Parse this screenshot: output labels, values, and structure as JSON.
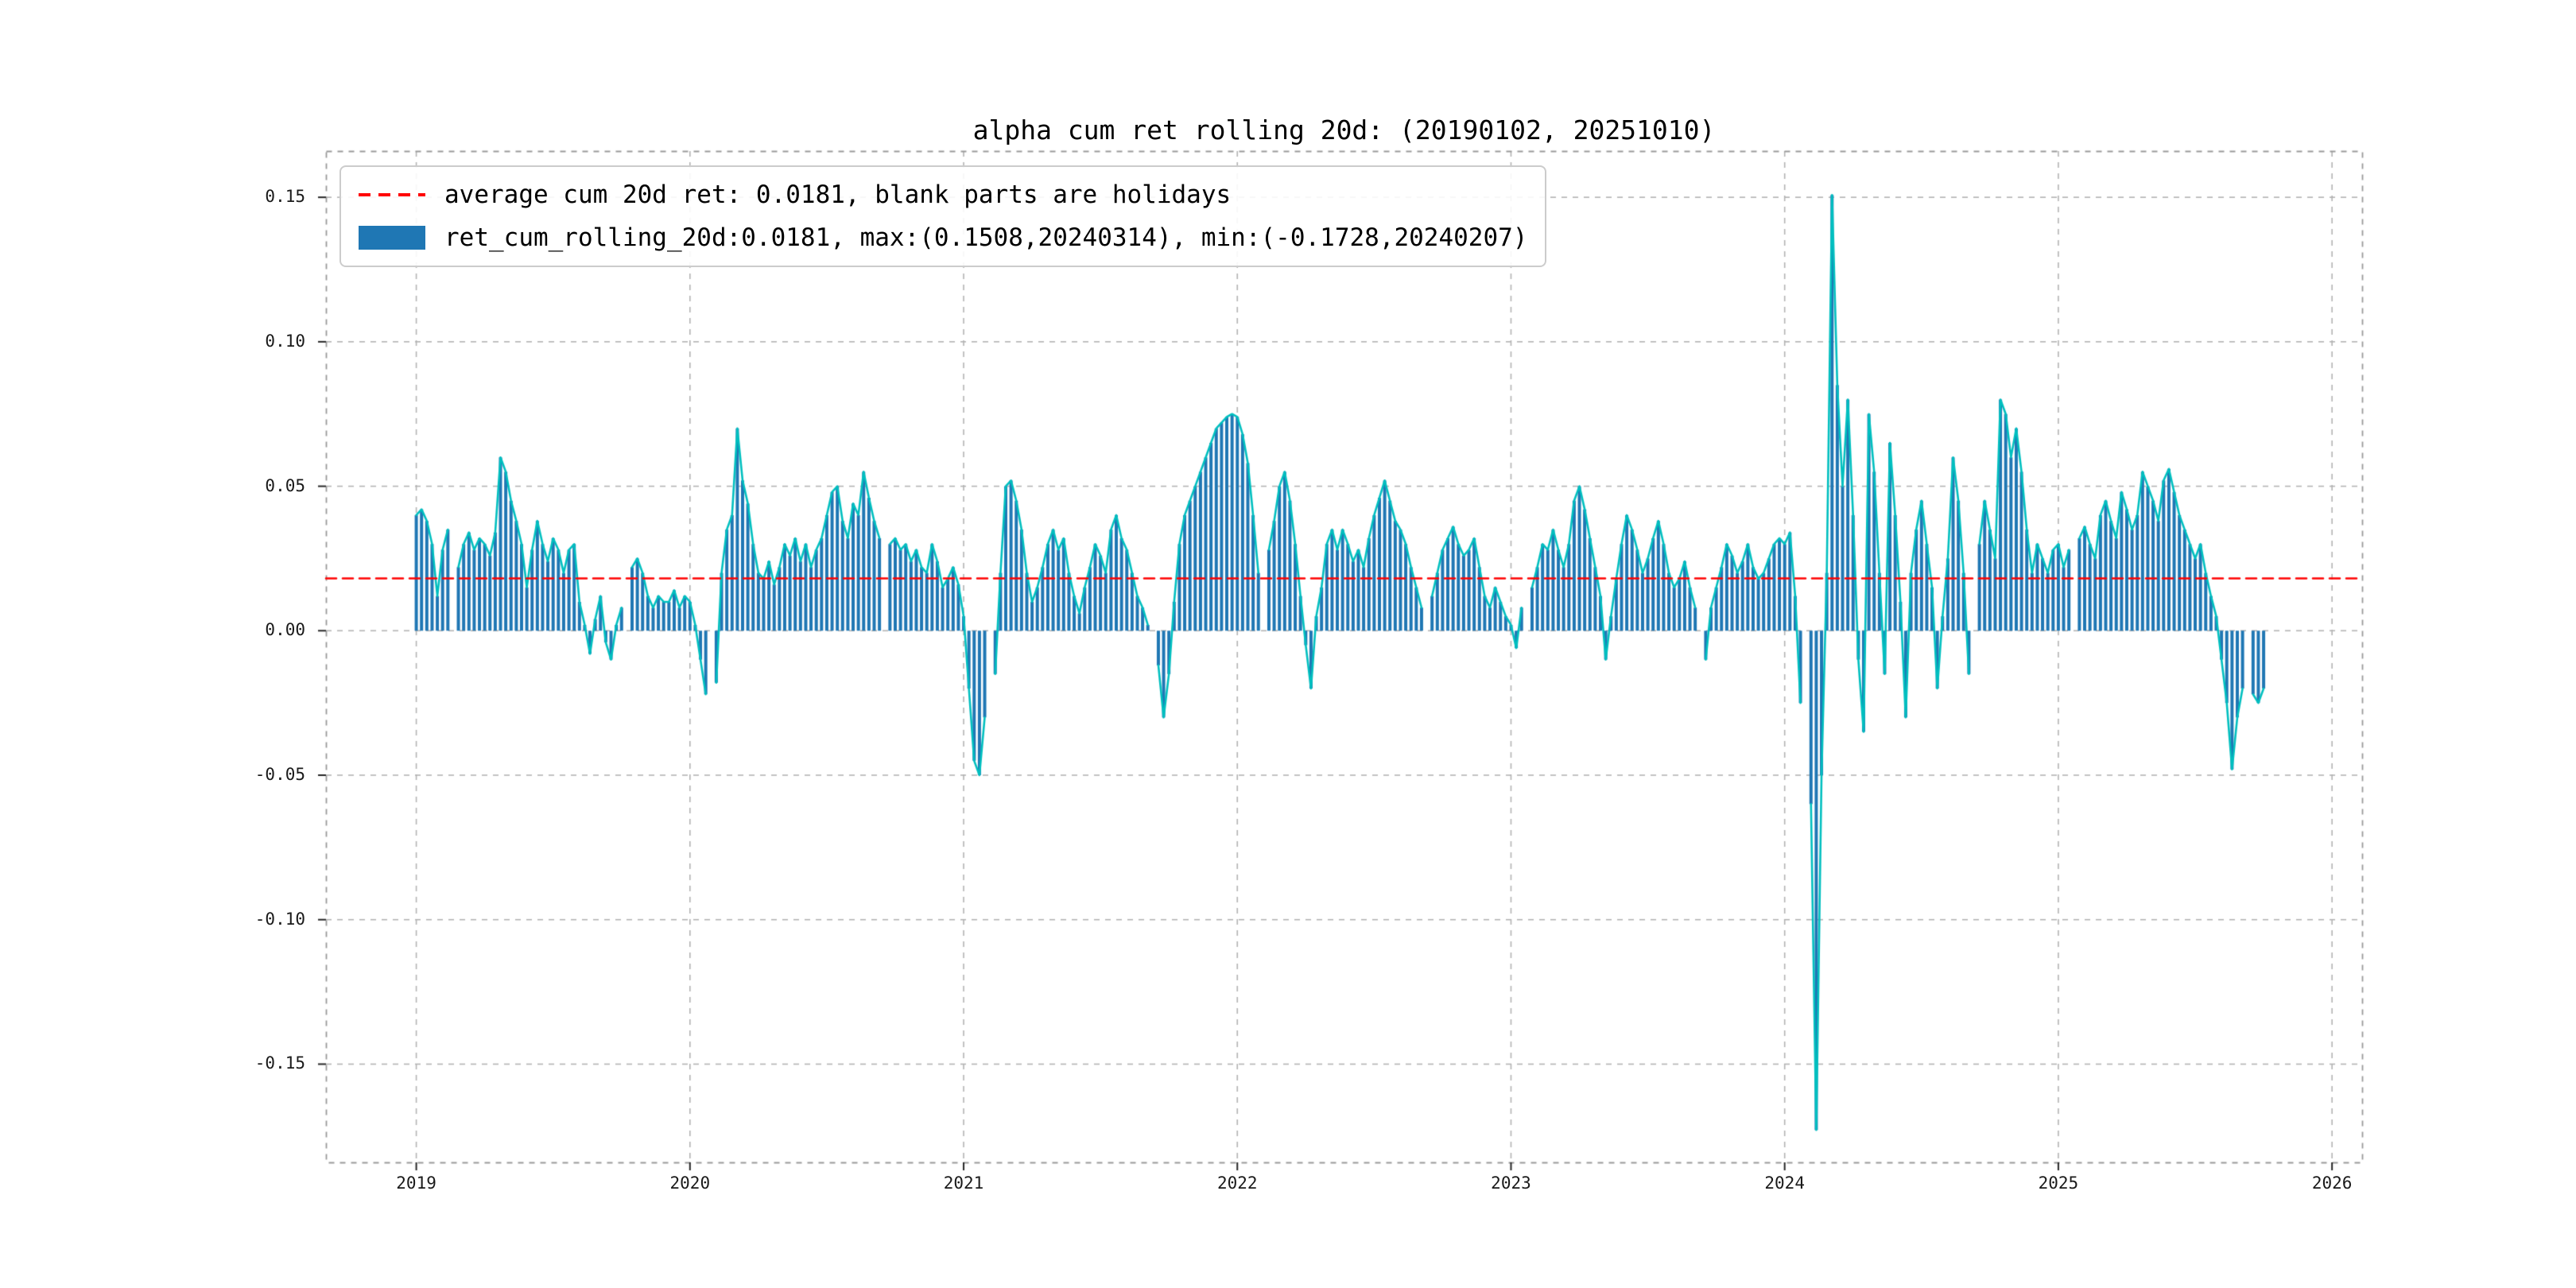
{
  "figure": {
    "title": "alpha cum ret rolling 20d: (20190102, 20251010)",
    "background": "#ffffff"
  },
  "legend": {
    "entries": [
      {
        "kind": "dashed-line",
        "color": "#ff0000",
        "label": "average cum 20d ret: 0.0181, blank parts are holidays"
      },
      {
        "kind": "bar",
        "color": "#1f77b4",
        "label": "ret_cum_rolling_20d:0.0181, max:(0.1508,20240314), min:(-0.1728,20240207)"
      }
    ]
  },
  "chart_data": {
    "type": "bar",
    "title": "alpha cum ret rolling 20d: (20190102, 20251010)",
    "series_name": "ret_cum_rolling_20d",
    "average": 0.0181,
    "max": {
      "value": 0.1508,
      "date": "20240314"
    },
    "min": {
      "value": -0.1728,
      "date": "20240207"
    },
    "x_start_year": 2019,
    "points_per_year": 52,
    "x_range": [
      2018.67,
      2026.11
    ],
    "y_range": [
      -0.184,
      0.166
    ],
    "xticks": [
      2019,
      2020,
      2021,
      2022,
      2023,
      2024,
      2025,
      2026
    ],
    "xtick_labels": [
      "2019",
      "2020",
      "2021",
      "2022",
      "2023",
      "2024",
      "2025",
      "2026"
    ],
    "yticks": [
      0.15,
      0.1,
      0.05,
      0.0,
      -0.05,
      -0.1,
      -0.15
    ],
    "ytick_labels": [
      "0.15",
      "0.10",
      "0.05",
      "0.00",
      "-0.05",
      "-0.10",
      "-0.15"
    ],
    "bar_color": "#1f77b4",
    "line_color": "#00bfbf",
    "avg_line_color": "#ff0000",
    "grid_color": "#b3b3b3",
    "frame_color": "#999999",
    "values": [
      0.04,
      0.042,
      0.038,
      0.03,
      0.012,
      0.028,
      0.035,
      null,
      0.022,
      0.03,
      0.034,
      0.028,
      0.032,
      0.03,
      0.026,
      0.034,
      0.06,
      0.055,
      0.045,
      0.038,
      0.03,
      0.015,
      0.028,
      0.038,
      0.03,
      0.024,
      0.032,
      0.028,
      0.02,
      0.028,
      0.03,
      0.01,
      0.002,
      -0.008,
      0.004,
      0.012,
      -0.004,
      -0.01,
      0.002,
      0.008,
      null,
      0.022,
      0.025,
      0.02,
      0.012,
      0.008,
      0.012,
      0.01,
      0.01,
      0.014,
      0.008,
      0.012,
      0.01,
      0.002,
      -0.01,
      -0.022,
      null,
      -0.018,
      0.02,
      0.035,
      0.04,
      0.07,
      0.052,
      0.044,
      0.03,
      0.02,
      0.018,
      0.024,
      0.016,
      0.022,
      0.03,
      0.026,
      0.032,
      0.024,
      0.03,
      0.022,
      0.028,
      0.032,
      0.04,
      0.048,
      0.05,
      0.038,
      0.032,
      0.044,
      0.04,
      0.055,
      0.046,
      0.038,
      0.032,
      null,
      0.03,
      0.032,
      0.028,
      0.03,
      0.024,
      0.028,
      0.022,
      0.02,
      0.03,
      0.024,
      0.015,
      0.018,
      0.022,
      0.016,
      0.005,
      -0.02,
      -0.045,
      -0.05,
      -0.03,
      null,
      -0.015,
      0.02,
      0.05,
      0.052,
      0.045,
      0.035,
      0.02,
      0.01,
      0.015,
      0.022,
      0.03,
      0.035,
      0.028,
      0.032,
      0.02,
      0.012,
      0.006,
      0.015,
      0.022,
      0.03,
      0.026,
      0.02,
      0.035,
      0.04,
      0.032,
      0.028,
      0.02,
      0.012,
      0.008,
      0.002,
      null,
      -0.012,
      -0.03,
      -0.015,
      0.01,
      0.03,
      0.04,
      0.045,
      0.05,
      0.055,
      0.06,
      0.065,
      0.07,
      0.072,
      0.074,
      0.075,
      0.074,
      0.068,
      0.058,
      0.04,
      0.02,
      null,
      0.028,
      0.038,
      0.05,
      0.055,
      0.045,
      0.03,
      0.012,
      -0.005,
      -0.02,
      0.005,
      0.015,
      0.03,
      0.035,
      0.028,
      0.035,
      0.03,
      0.024,
      0.028,
      0.022,
      0.032,
      0.04,
      0.046,
      0.052,
      0.045,
      0.038,
      0.035,
      0.03,
      0.022,
      0.015,
      0.008,
      null,
      0.012,
      0.02,
      0.028,
      0.032,
      0.036,
      0.03,
      0.026,
      0.028,
      0.032,
      0.022,
      0.012,
      0.008,
      0.015,
      0.01,
      0.005,
      0.002,
      -0.006,
      0.008,
      null,
      0.015,
      0.022,
      0.03,
      0.028,
      0.035,
      0.028,
      0.022,
      0.03,
      0.045,
      0.05,
      0.042,
      0.032,
      0.022,
      0.012,
      -0.01,
      0.005,
      0.018,
      0.03,
      0.04,
      0.035,
      0.028,
      0.02,
      0.025,
      0.032,
      0.038,
      0.03,
      0.02,
      0.015,
      0.018,
      0.024,
      0.015,
      0.008,
      null,
      -0.01,
      0.008,
      0.015,
      0.022,
      0.03,
      0.026,
      0.02,
      0.024,
      0.03,
      0.022,
      0.018,
      0.02,
      0.025,
      0.03,
      0.032,
      0.03,
      0.034,
      0.012,
      -0.025,
      null,
      -0.06,
      -0.1728,
      -0.05,
      0.02,
      0.1508,
      0.085,
      0.05,
      0.08,
      0.04,
      -0.01,
      -0.035,
      0.075,
      0.055,
      0.02,
      -0.015,
      0.065,
      0.04,
      0.01,
      -0.03,
      0.02,
      0.035,
      0.045,
      0.03,
      0.015,
      -0.02,
      0.005,
      0.025,
      0.06,
      0.045,
      0.02,
      -0.015,
      null,
      0.03,
      0.045,
      0.035,
      0.025,
      0.08,
      0.075,
      0.06,
      0.07,
      0.055,
      0.035,
      0.02,
      0.03,
      0.025,
      0.02,
      0.028,
      0.03,
      0.022,
      0.028,
      null,
      0.032,
      0.036,
      0.03,
      0.025,
      0.04,
      0.045,
      0.038,
      0.032,
      0.048,
      0.042,
      0.035,
      0.04,
      0.055,
      0.05,
      0.045,
      0.038,
      0.052,
      0.056,
      0.048,
      0.04,
      0.035,
      0.03,
      0.025,
      0.03,
      0.02,
      0.012,
      0.005,
      -0.01,
      -0.025,
      -0.048,
      -0.03,
      -0.02,
      null,
      -0.022,
      -0.025,
      -0.02
    ]
  }
}
